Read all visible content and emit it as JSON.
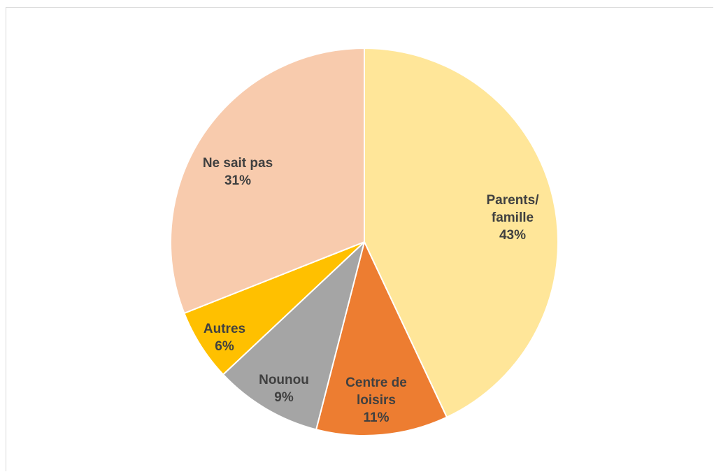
{
  "chart_data": {
    "type": "pie",
    "title": "",
    "start_angle_deg": 0,
    "direction": "clockwise",
    "legend": "none",
    "slices": [
      {
        "label_lines": [
          "Parents/",
          "famille"
        ],
        "value": 43,
        "value_label": "43%",
        "color": "#ffe699"
      },
      {
        "label_lines": [
          "Centre de",
          "loisirs"
        ],
        "value": 11,
        "value_label": "11%",
        "color": "#ed7d31"
      },
      {
        "label_lines": [
          "Nounou"
        ],
        "value": 9,
        "value_label": "9%",
        "color": "#a5a5a5"
      },
      {
        "label_lines": [
          "Autres"
        ],
        "value": 6,
        "value_label": "6%",
        "color": "#ffc000"
      },
      {
        "label_lines": [
          "Ne sait pas"
        ],
        "value": 31,
        "value_label": "31%",
        "color": "#f8cbad"
      }
    ]
  }
}
